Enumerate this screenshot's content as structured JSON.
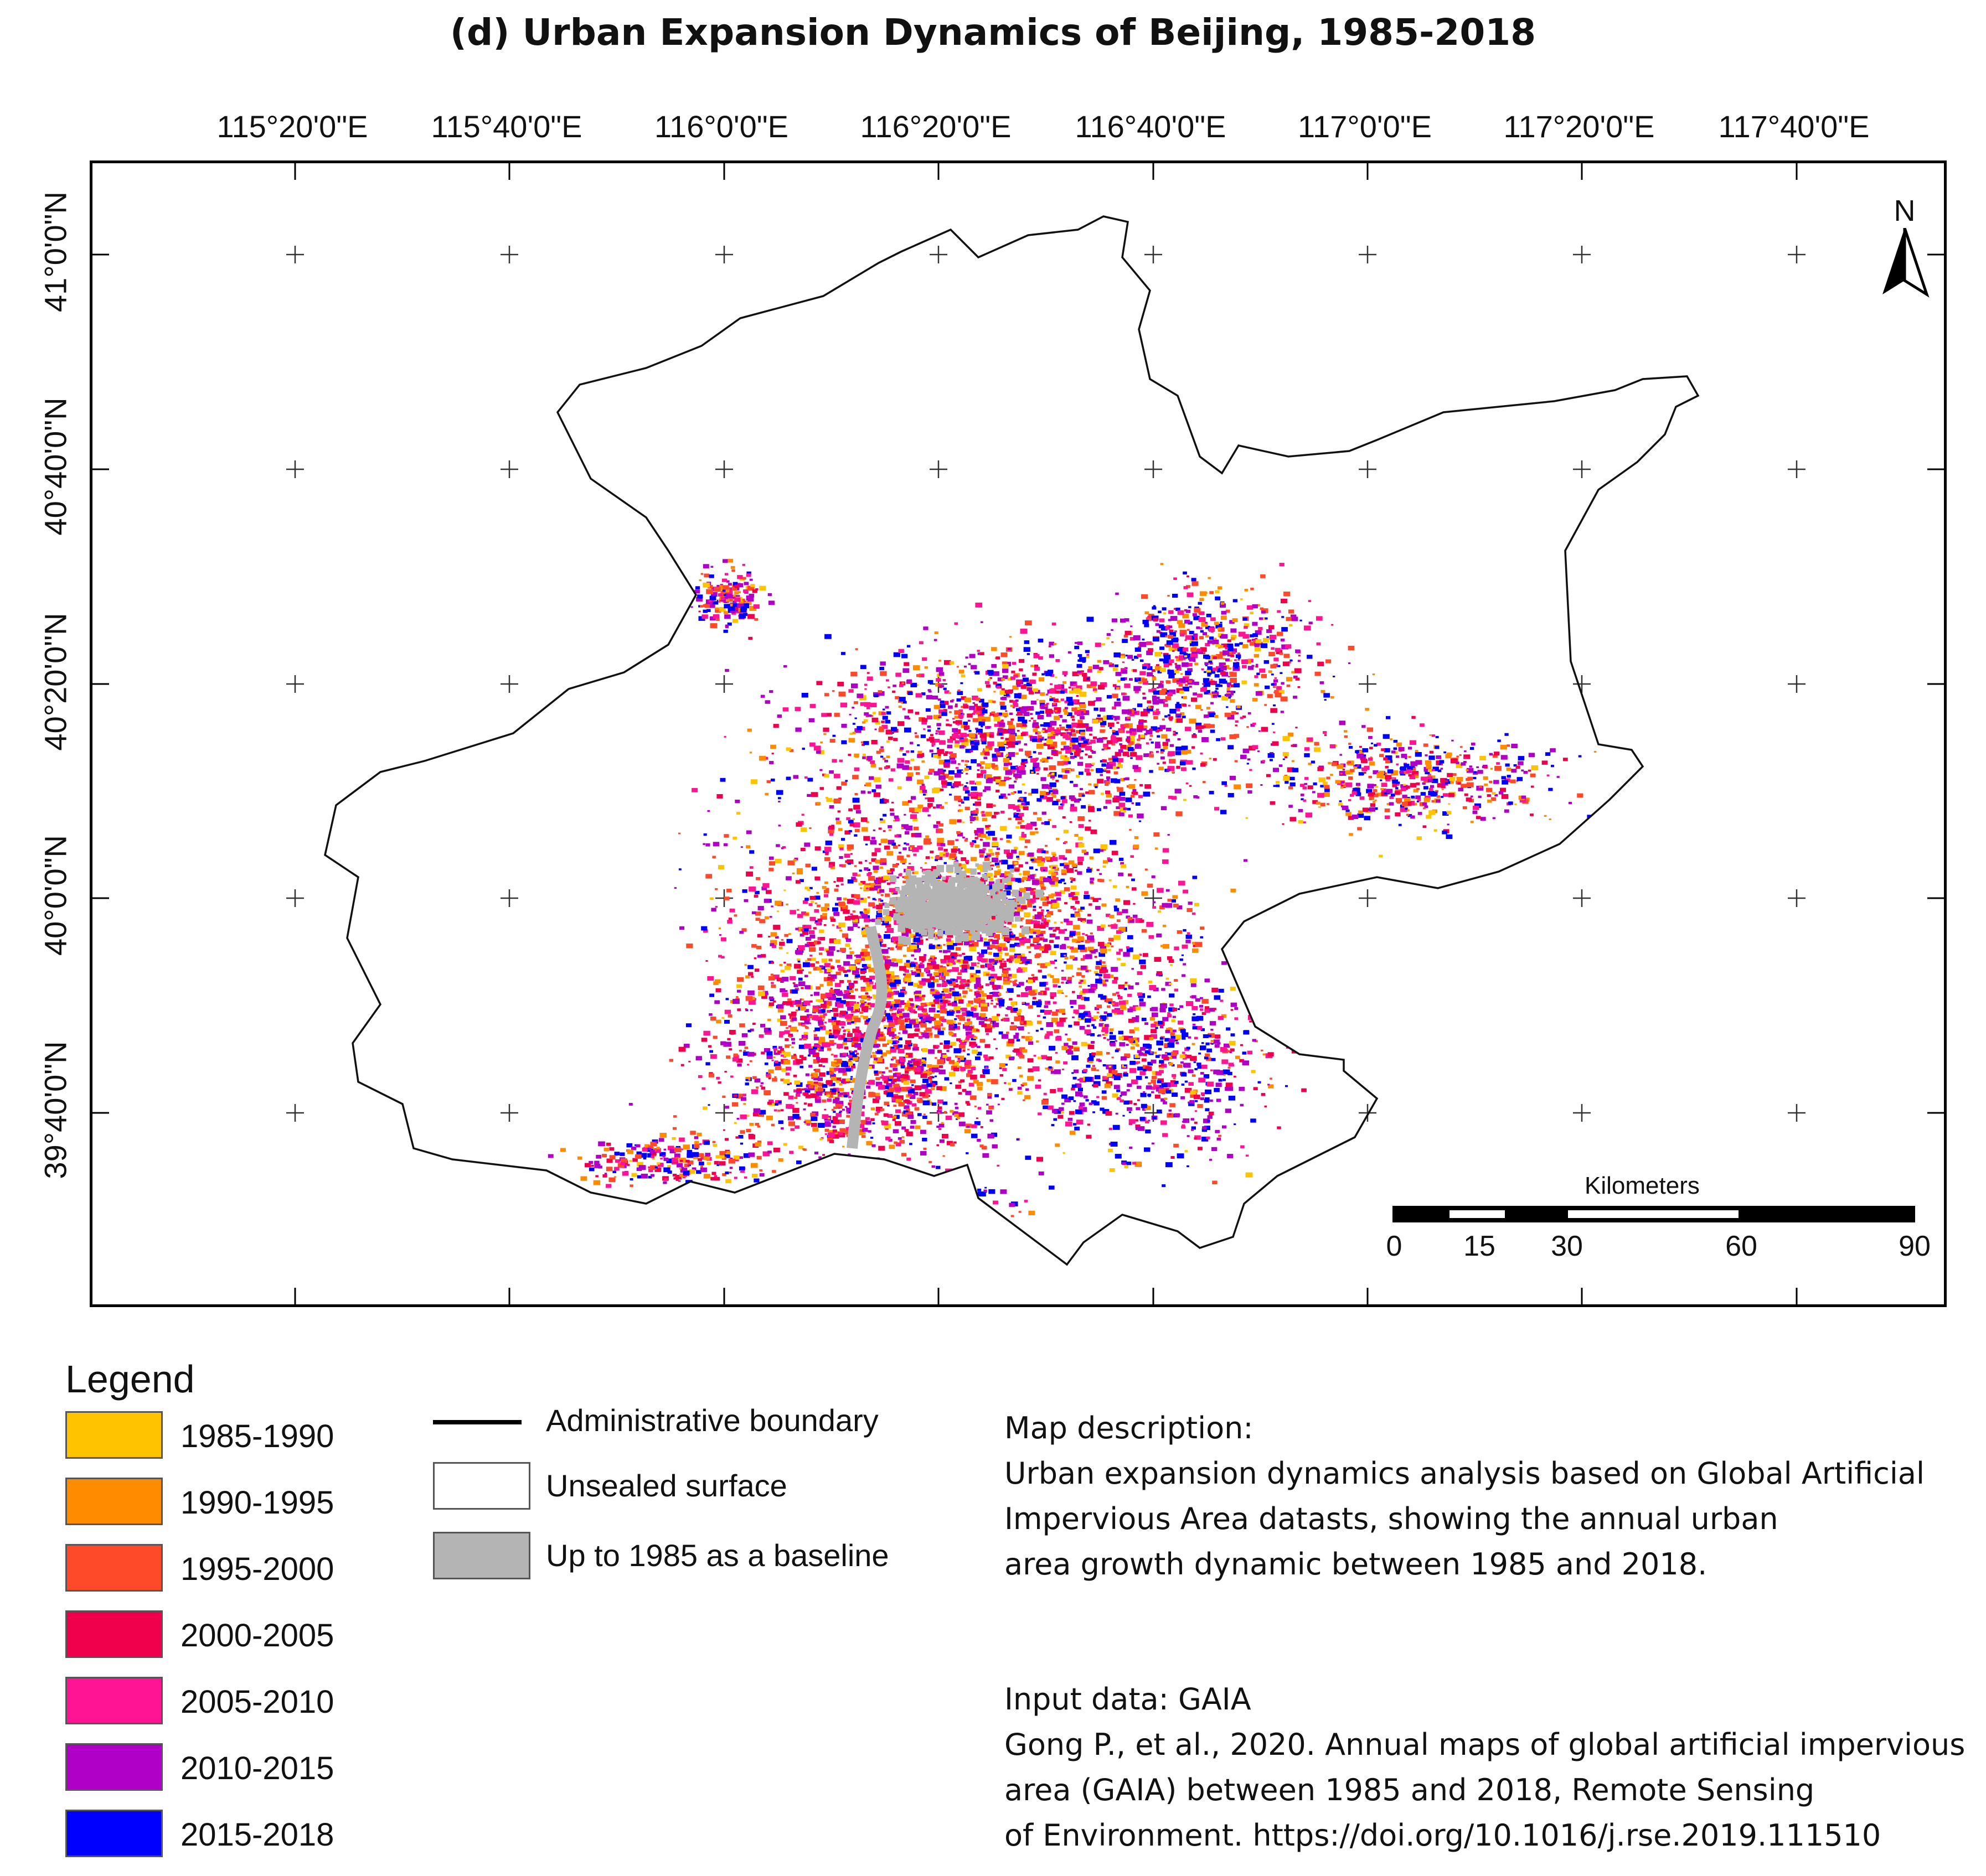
{
  "title": "(d)  Urban Expansion Dynamics of Beijing, 1985-2018",
  "axes": {
    "longitudes": [
      "115°20'0\"E",
      "115°40'0\"E",
      "116°0'0\"E",
      "116°20'0\"E",
      "116°40'0\"E",
      "117°0'0\"E",
      "117°20'0\"E",
      "117°40'0\"E"
    ],
    "latitudes": [
      "41°0'0\"N",
      "40°40'0\"N",
      "40°20'0\"N",
      "40°0'0\"N",
      "39°40'0\"N"
    ]
  },
  "north_arrow": {
    "label": "N"
  },
  "scale_bar": {
    "title": "Kilometers",
    "ticks": [
      "0",
      "15",
      "30",
      "60",
      "90"
    ]
  },
  "legend": {
    "title": "Legend",
    "items": [
      {
        "label": "1985-1990",
        "color": "#FFC300"
      },
      {
        "label": "1990-1995",
        "color": "#FF8C00"
      },
      {
        "label": "1995-2000",
        "color": "#FF4A2A"
      },
      {
        "label": "2000-2005",
        "color": "#F0004C"
      },
      {
        "label": "2005-2010",
        "color": "#FF1493"
      },
      {
        "label": "2010-2015",
        "color": "#B000C8"
      },
      {
        "label": "2015-2018",
        "color": "#0000FF"
      }
    ],
    "boundary_label": "Administrative boundary",
    "unsealed_label": "Unsealed surface",
    "unsealed_color": "#FFFFFF",
    "baseline_label": "Up to 1985 as a baseline",
    "baseline_color": "#B4B4B4"
  },
  "description": {
    "heading": "Map description:",
    "lines": [
      "Urban expansion dynamics analysis based on Global Artificial",
      "Impervious Area datasts, showing the annual urban",
      "area growth dynamic between 1985 and 2018."
    ]
  },
  "input": {
    "heading": "Input data: GAIA",
    "lines": [
      "Gong P., et al., 2020. Annual maps of global artificial impervious",
      "area (GAIA) between 1985 and 2018, Remote Sensing",
      "of Environment. https://doi.org/10.1016/j.rse.2019.111510"
    ]
  }
}
